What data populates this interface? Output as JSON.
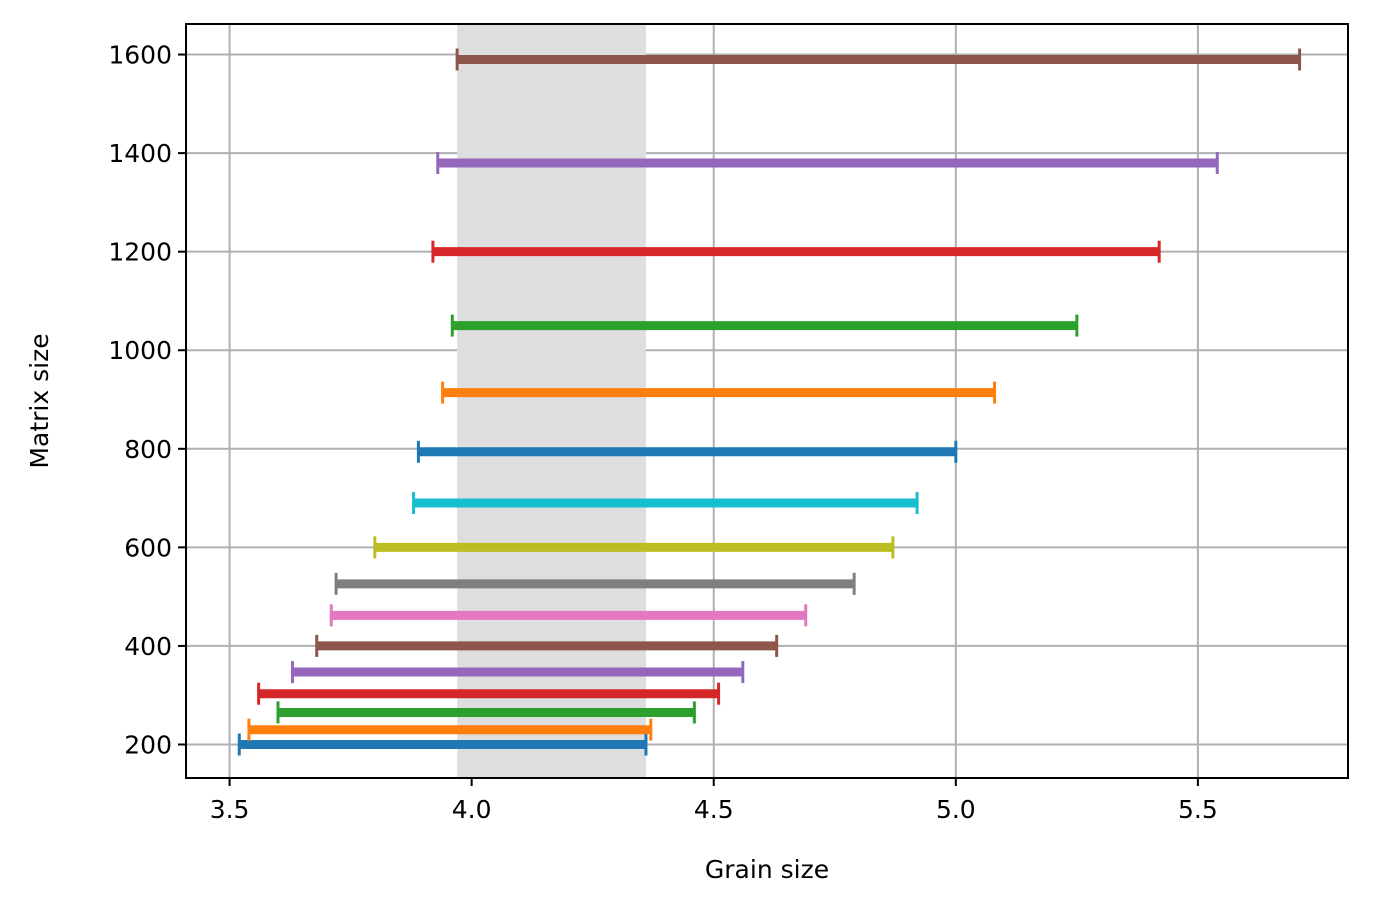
{
  "chart_data": {
    "type": "range",
    "xlabel": "Grain size",
    "ylabel": "Matrix size",
    "xlim": [
      3.41,
      5.81
    ],
    "ylim": [
      132,
      1662
    ],
    "xticks": [
      "3.5",
      "4.0",
      "4.5",
      "5.0",
      "5.5"
    ],
    "yticks": [
      "200",
      "400",
      "600",
      "800",
      "1000",
      "1200",
      "1400",
      "1600"
    ],
    "grid": true,
    "shaded_band": {
      "x_start": 3.97,
      "x_end": 4.36,
      "color": "#dedede"
    },
    "series": [
      {
        "y": 200,
        "x_start": 3.52,
        "x_end": 4.36,
        "color": "#1f77b4"
      },
      {
        "y": 230,
        "x_start": 3.54,
        "x_end": 4.37,
        "color": "#ff7f0e"
      },
      {
        "y": 265,
        "x_start": 3.6,
        "x_end": 4.46,
        "color": "#2ca02c"
      },
      {
        "y": 303,
        "x_start": 3.56,
        "x_end": 4.51,
        "color": "#d62728"
      },
      {
        "y": 347,
        "x_start": 3.63,
        "x_end": 4.56,
        "color": "#9467bd"
      },
      {
        "y": 400,
        "x_start": 3.68,
        "x_end": 4.63,
        "color": "#8c564b"
      },
      {
        "y": 462,
        "x_start": 3.71,
        "x_end": 4.69,
        "color": "#e377c2"
      },
      {
        "y": 526,
        "x_start": 3.72,
        "x_end": 4.79,
        "color": "#7f7f7f"
      },
      {
        "y": 600,
        "x_start": 3.8,
        "x_end": 4.87,
        "color": "#bcbd22"
      },
      {
        "y": 690,
        "x_start": 3.88,
        "x_end": 4.92,
        "color": "#17becf"
      },
      {
        "y": 794,
        "x_start": 3.89,
        "x_end": 5.0,
        "color": "#1f77b4"
      },
      {
        "y": 914,
        "x_start": 3.94,
        "x_end": 5.08,
        "color": "#ff7f0e"
      },
      {
        "y": 1050,
        "x_start": 3.96,
        "x_end": 5.25,
        "color": "#2ca02c"
      },
      {
        "y": 1200,
        "x_start": 3.92,
        "x_end": 5.42,
        "color": "#d62728"
      },
      {
        "y": 1380,
        "x_start": 3.93,
        "x_end": 5.54,
        "color": "#9467bd"
      },
      {
        "y": 1590,
        "x_start": 3.97,
        "x_end": 5.71,
        "color": "#8c564b"
      }
    ]
  }
}
